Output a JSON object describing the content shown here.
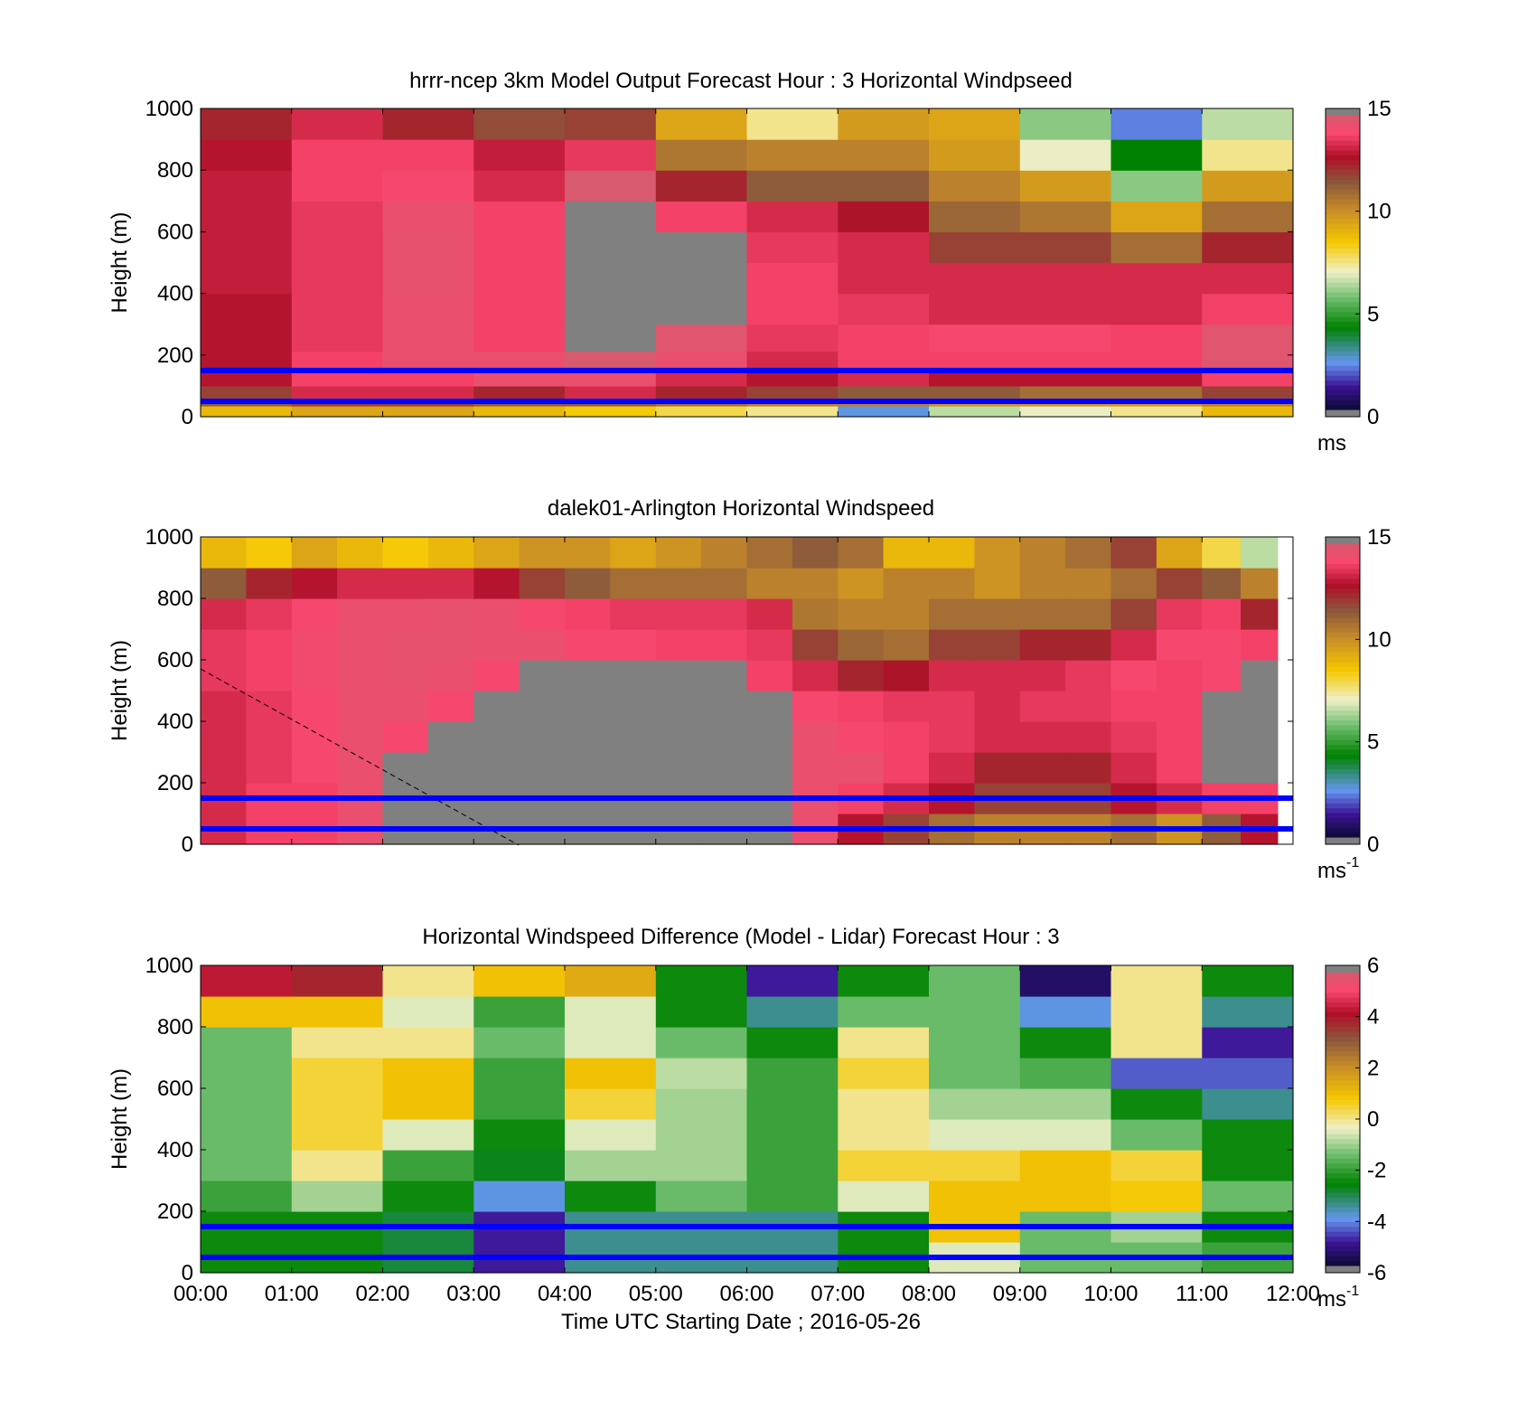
{
  "x_tick_labels": [
    "00:00",
    "01:00",
    "02:00",
    "03:00",
    "04:00",
    "05:00",
    "06:00",
    "07:00",
    "08:00",
    "09:00",
    "10:00",
    "11:00",
    "12:00"
  ],
  "x_axis_label": "Time UTC  Starting Date ; 2016-05-26",
  "colors": {
    "reference_line": "#0000ff",
    "missing": "#808080"
  },
  "chart_data": [
    {
      "type": "heatmap",
      "title": "hrrr-ncep 3km Model Output   Forecast Hour : 3 Horizontal Windpseed",
      "ylabel": "Height (m)",
      "xlabel": "",
      "xlim_hours": [
        0,
        12
      ],
      "ylim": [
        0,
        1000
      ],
      "y_ticks": [
        0,
        200,
        400,
        600,
        800,
        1000
      ],
      "colorbar": {
        "min": 0,
        "max": 15,
        "ticks": [
          0,
          5,
          10,
          15
        ],
        "unit": "ms",
        "unit_sup": ""
      },
      "reference_lines_m": [
        150,
        50
      ],
      "grid": false,
      "x": [
        0.5,
        1.5,
        2.5,
        3.5,
        4.5,
        5.5,
        6.5,
        7.5,
        8.5,
        9.5,
        10.5,
        11.5
      ],
      "y": [
        25,
        45,
        75,
        125,
        175,
        250,
        350,
        450,
        550,
        650,
        750,
        850,
        950
      ],
      "values": [
        [
          9.0,
          9.5,
          9.5,
          9.0,
          8.5,
          8.0,
          7.5,
          2.5,
          6.5,
          7.0,
          7.5,
          9.0
        ],
        [
          11.5,
          12.0,
          12.0,
          11.5,
          11.5,
          11.0,
          10.5,
          10.5,
          10.0,
          10.0,
          10.0,
          10.5
        ],
        [
          12.0,
          13.5,
          13.5,
          12.5,
          13.5,
          12.5,
          12.0,
          11.5,
          11.5,
          11.0,
          11.0,
          12.0
        ],
        [
          13.0,
          14.0,
          14.0,
          14.5,
          14.5,
          13.5,
          13.0,
          13.5,
          13.0,
          13.0,
          13.0,
          14.0
        ],
        [
          13.0,
          14.0,
          14.5,
          14.5,
          15.0,
          14.5,
          13.5,
          14.0,
          14.0,
          14.0,
          14.0,
          14.8
        ],
        [
          13.0,
          13.8,
          14.5,
          14.0,
          0,
          14.8,
          13.8,
          14.0,
          14.2,
          14.2,
          14.0,
          14.8
        ],
        [
          13.0,
          13.8,
          14.5,
          14.0,
          0,
          0,
          14.0,
          13.8,
          13.5,
          13.5,
          13.5,
          14.0
        ],
        [
          13.2,
          13.8,
          14.6,
          14.0,
          0,
          0,
          14.0,
          13.5,
          13.5,
          13.5,
          13.5,
          13.5
        ],
        [
          13.2,
          13.8,
          14.6,
          14.0,
          0,
          0,
          13.8,
          13.5,
          12.0,
          12.0,
          11.0,
          12.5
        ],
        [
          13.2,
          13.8,
          14.5,
          14.0,
          0,
          14.0,
          13.5,
          12.8,
          11.2,
          10.8,
          9.5,
          11.0
        ],
        [
          13.2,
          14.0,
          14.2,
          13.5,
          15.0,
          12.5,
          11.5,
          11.5,
          10.5,
          9.8,
          6.0,
          9.8
        ],
        [
          13.0,
          14.0,
          14.0,
          13.2,
          13.8,
          10.8,
          10.5,
          10.5,
          9.8,
          7.0,
          4.2,
          7.5
        ],
        [
          12.5,
          13.5,
          12.5,
          11.8,
          12.0,
          9.5,
          7.5,
          9.8,
          9.5,
          6.0,
          2.2,
          6.5
        ]
      ]
    },
    {
      "type": "heatmap",
      "title": "dalek01-Arlington  Horizontal Windspeed",
      "ylabel": "Height (m)",
      "xlabel": "",
      "xlim_hours": [
        0,
        12
      ],
      "ylim": [
        0,
        1000
      ],
      "y_ticks": [
        0,
        200,
        400,
        600,
        800,
        1000
      ],
      "colorbar": {
        "min": 0,
        "max": 15,
        "ticks": [
          0,
          5,
          10,
          15
        ],
        "unit": "ms",
        "unit_sup": "-1"
      },
      "reference_lines_m": [
        150,
        50
      ],
      "grid": false,
      "data_extent_hours": [
        0,
        11.83
      ],
      "x": [
        0.25,
        0.75,
        1.25,
        1.75,
        2.25,
        2.75,
        3.25,
        3.75,
        4.25,
        4.75,
        5.25,
        5.75,
        6.25,
        6.75,
        7.25,
        7.75,
        8.25,
        8.75,
        9.25,
        9.75,
        10.25,
        10.75,
        11.25,
        11.6
      ],
      "y": [
        50,
        150,
        250,
        350,
        450,
        550,
        650,
        750,
        850,
        950
      ],
      "values": [
        [
          13.5,
          14.0,
          14.0,
          14.5,
          0,
          0,
          0,
          0,
          0,
          0,
          0,
          0,
          0,
          14.5,
          13.0,
          12.0,
          11.0,
          10.5,
          10.5,
          10.5,
          11.0,
          10.0,
          11.5,
          13.0
        ],
        [
          13.5,
          14.0,
          14.0,
          14.5,
          0,
          0,
          0,
          0,
          0,
          0,
          0,
          0,
          0,
          14.5,
          14.0,
          13.5,
          13.0,
          12.0,
          12.0,
          12.0,
          13.0,
          13.5,
          14.0,
          14.0
        ],
        [
          13.5,
          13.8,
          14.2,
          14.5,
          0,
          0,
          0,
          0,
          0,
          0,
          0,
          0,
          0,
          14.5,
          14.5,
          14.0,
          13.5,
          12.5,
          12.5,
          12.5,
          13.5,
          14.0,
          0,
          0
        ],
        [
          13.5,
          13.8,
          14.2,
          14.5,
          14.2,
          0,
          0,
          0,
          0,
          0,
          0,
          0,
          0,
          14.5,
          14.2,
          14.0,
          13.8,
          13.5,
          13.5,
          13.5,
          13.8,
          14.0,
          0,
          0
        ],
        [
          13.5,
          13.8,
          14.2,
          14.5,
          14.5,
          14.2,
          0,
          0,
          0,
          0,
          0,
          0,
          0,
          14.2,
          14.0,
          13.8,
          13.8,
          13.5,
          13.8,
          13.8,
          14.0,
          14.0,
          0,
          0
        ],
        [
          13.8,
          14.0,
          14.3,
          14.5,
          14.6,
          14.5,
          14.2,
          0,
          0,
          0,
          0,
          0,
          14.0,
          13.5,
          12.5,
          12.8,
          13.5,
          13.5,
          13.5,
          13.8,
          14.2,
          14.0,
          14.2,
          0
        ],
        [
          13.8,
          14.0,
          14.3,
          14.5,
          14.6,
          14.6,
          14.5,
          14.5,
          14.2,
          14.2,
          14.0,
          14.0,
          13.8,
          12.0,
          11.2,
          11.0,
          12.0,
          12.0,
          12.5,
          12.5,
          13.5,
          14.2,
          14.2,
          14.0
        ],
        [
          13.5,
          13.8,
          14.2,
          14.5,
          14.5,
          14.6,
          14.5,
          14.2,
          14.0,
          13.8,
          13.8,
          13.8,
          13.5,
          10.8,
          10.5,
          10.5,
          11.0,
          11.0,
          11.0,
          11.0,
          12.0,
          13.8,
          14.0,
          12.5
        ],
        [
          11.5,
          12.5,
          13.0,
          13.5,
          13.5,
          13.5,
          13.0,
          12.0,
          11.5,
          11.0,
          11.0,
          11.0,
          10.5,
          10.5,
          10.0,
          10.5,
          10.5,
          10.0,
          10.5,
          10.5,
          11.0,
          12.0,
          11.5,
          10.5
        ],
        [
          9.0,
          8.5,
          9.5,
          9.0,
          8.5,
          9.0,
          9.5,
          10.0,
          10.0,
          9.5,
          10.0,
          10.5,
          11.0,
          11.5,
          11.0,
          9.0,
          9.0,
          10.0,
          10.5,
          11.0,
          12.0,
          9.5,
          8.0,
          6.5
        ]
      ]
    },
    {
      "type": "heatmap",
      "title": "Horizontal Windspeed Difference (Model - Lidar) Forecast Hour : 3",
      "ylabel": "Height (m)",
      "xlabel": "Time UTC  Starting Date ; 2016-05-26",
      "xlim_hours": [
        0,
        12
      ],
      "ylim": [
        0,
        1000
      ],
      "y_ticks": [
        0,
        200,
        400,
        600,
        800,
        1000
      ],
      "colorbar": {
        "min": -6,
        "max": 6,
        "ticks": [
          -6,
          -4,
          -2,
          0,
          2,
          4,
          6
        ],
        "unit": "ms",
        "unit_sup": "-1"
      },
      "reference_lines_m": [
        150,
        50
      ],
      "grid": false,
      "x": [
        0.5,
        1.5,
        2.5,
        3.5,
        4.5,
        5.5,
        6.5,
        7.5,
        8.5,
        9.5,
        10.5,
        11.5
      ],
      "y": [
        50,
        150,
        250,
        350,
        450,
        550,
        650,
        750,
        850,
        950
      ],
      "values": [
        [
          -2.5,
          -2.5,
          -3.0,
          -5.0,
          -3.5,
          -3.5,
          -3.5,
          -2.5,
          -0.5,
          -1.5,
          -1.5,
          -2.0
        ],
        [
          -2.5,
          -2.5,
          -3.0,
          -5.0,
          -3.5,
          -3.5,
          -3.5,
          -2.5,
          1.0,
          -1.5,
          -1.0,
          -2.5
        ],
        [
          -2.0,
          -1.0,
          -2.5,
          -4.0,
          -2.5,
          -1.5,
          -2.0,
          -0.5,
          1.0,
          1.0,
          0.8,
          -1.5
        ],
        [
          -1.5,
          0.0,
          -2.0,
          -2.8,
          -1.0,
          -1.0,
          -2.0,
          0.5,
          0.5,
          1.0,
          0.5,
          -2.5
        ],
        [
          -1.5,
          0.5,
          -0.5,
          -2.5,
          -0.5,
          -1.0,
          -2.0,
          0.0,
          -0.5,
          -0.5,
          -1.5,
          -2.5
        ],
        [
          -1.5,
          0.5,
          1.0,
          -2.0,
          0.5,
          -1.0,
          -2.0,
          0.0,
          -1.0,
          -1.0,
          -2.5,
          -3.5
        ],
        [
          -1.5,
          0.5,
          1.0,
          -2.0,
          1.0,
          -0.8,
          -2.0,
          0.5,
          -1.5,
          -1.8,
          -4.5,
          -4.5
        ],
        [
          -1.5,
          0.0,
          0.0,
          -1.5,
          -0.5,
          -1.5,
          -2.5,
          0.0,
          -1.5,
          -2.5,
          0.0,
          -5.0
        ],
        [
          1.0,
          1.0,
          -0.5,
          -2.0,
          -0.5,
          -2.5,
          -3.5,
          -1.5,
          -1.5,
          -4.0,
          0.0,
          -3.5
        ],
        [
          4.5,
          4.0,
          0.0,
          1.0,
          1.5,
          -2.5,
          -5.0,
          -2.5,
          -1.5,
          -5.5,
          0.0,
          -2.5
        ]
      ]
    }
  ]
}
